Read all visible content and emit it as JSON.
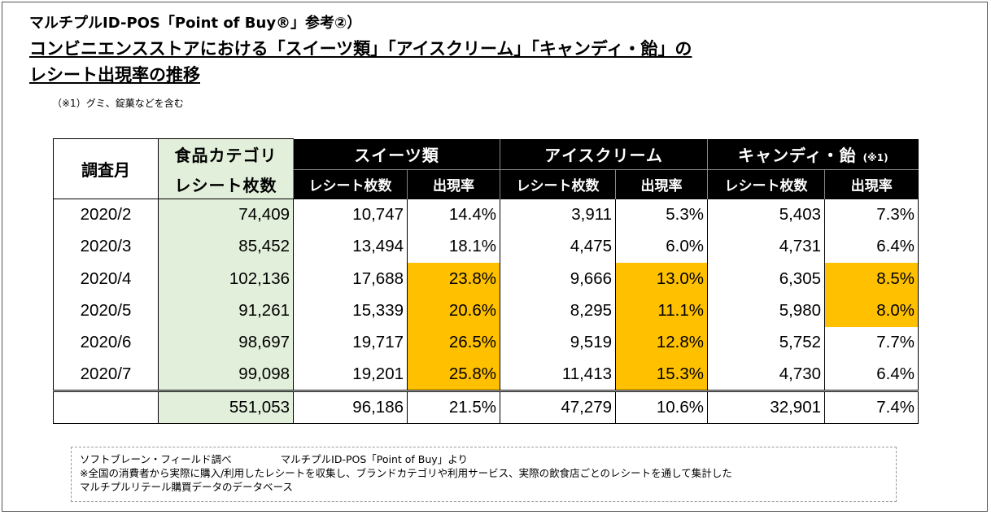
{
  "header": {
    "subtitle": "マルチプルID-POS「Point of Buy®」参考②）",
    "title_line1": "コンビニエンスストアにおける「スイーツ類」「アイスクリーム」「キャンディ・飴」の",
    "title_line2": "レシート出現率の推移",
    "note": "（※1）グミ、錠菓などを含む"
  },
  "table": {
    "col_month": "調査月",
    "col_food_line1": "食品カテゴリ",
    "col_food_line2": "レシート枚数",
    "groups": [
      {
        "label": "スイーツ類",
        "note": ""
      },
      {
        "label": "アイスクリーム",
        "note": ""
      },
      {
        "label": "キャンディ・飴",
        "note": "(※1)"
      }
    ],
    "sub_receipts": "レシート枚数",
    "sub_rate": "出現率",
    "rows": [
      {
        "month": "2020/2",
        "food": "74,409",
        "s_cnt": "10,747",
        "s_rate": "14.4%",
        "i_cnt": "3,911",
        "i_rate": "5.3%",
        "c_cnt": "5,403",
        "c_rate": "7.3%"
      },
      {
        "month": "2020/3",
        "food": "85,452",
        "s_cnt": "13,494",
        "s_rate": "18.1%",
        "i_cnt": "4,475",
        "i_rate": "6.0%",
        "c_cnt": "4,731",
        "c_rate": "6.4%"
      },
      {
        "month": "2020/4",
        "food": "102,136",
        "s_cnt": "17,688",
        "s_rate": "23.8%",
        "i_cnt": "9,666",
        "i_rate": "13.0%",
        "c_cnt": "6,305",
        "c_rate": "8.5%"
      },
      {
        "month": "2020/5",
        "food": "91,261",
        "s_cnt": "15,339",
        "s_rate": "20.6%",
        "i_cnt": "8,295",
        "i_rate": "11.1%",
        "c_cnt": "5,980",
        "c_rate": "8.0%"
      },
      {
        "month": "2020/6",
        "food": "98,697",
        "s_cnt": "19,717",
        "s_rate": "26.5%",
        "i_cnt": "9,519",
        "i_rate": "12.8%",
        "c_cnt": "5,752",
        "c_rate": "7.7%"
      },
      {
        "month": "2020/7",
        "food": "99,098",
        "s_cnt": "19,201",
        "s_rate": "25.8%",
        "i_cnt": "11,413",
        "i_rate": "15.3%",
        "c_cnt": "4,730",
        "c_rate": "6.4%"
      }
    ],
    "total": {
      "month": "",
      "food": "551,053",
      "s_cnt": "96,186",
      "s_rate": "21.5%",
      "i_cnt": "47,279",
      "i_rate": "10.6%",
      "c_cnt": "32,901",
      "c_rate": "7.4%"
    },
    "highlight_color": "#ffc000",
    "food_column_color": "#e2efda"
  },
  "footer": {
    "source_left": "ソフトブレーン・フィールド調べ",
    "source_right": "マルチプルID-POS「Point of Buy」より",
    "line2": "※全国の消費者から実際に購入/利用したレシートを収集し、ブランドカテゴリや利用サービス、実際の飲食店ごとのレシートを通して集計した",
    "line3": "マルチプルリテール購買データのデータベース"
  }
}
